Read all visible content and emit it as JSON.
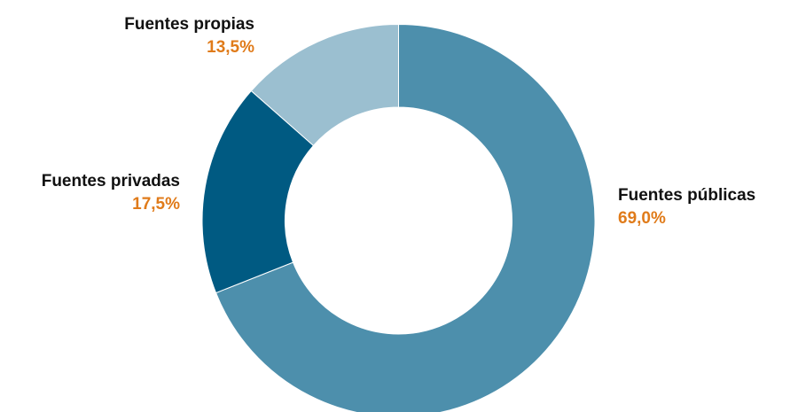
{
  "chart_data": {
    "type": "pie",
    "donut": true,
    "categories": [
      "Fuentes públicas",
      "Fuentes privadas",
      "Fuentes propias"
    ],
    "values": [
      69.0,
      17.5,
      13.5
    ],
    "value_labels": [
      "69,0%",
      "17,5%",
      "13,5%"
    ],
    "colors": [
      "#4d8fac",
      "#005a82",
      "#9bbfd0"
    ]
  }
}
